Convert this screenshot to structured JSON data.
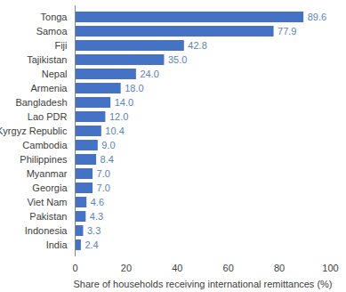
{
  "chart_data": {
    "type": "bar",
    "orientation": "horizontal",
    "categories": [
      "Tonga",
      "Samoa",
      "Fiji",
      "Tajikistan",
      "Nepal",
      "Armenia",
      "Bangladesh",
      "Lao PDR",
      "Kyrgyz Republic",
      "Cambodia",
      "Philippines",
      "Myanmar",
      "Georgia",
      "Viet Nam",
      "Pakistan",
      "Indonesia",
      "India"
    ],
    "values": [
      89.6,
      77.9,
      42.8,
      35.0,
      24.0,
      18.0,
      14.0,
      12.0,
      10.4,
      9.0,
      8.4,
      7.0,
      7.0,
      4.6,
      4.3,
      3.3,
      2.4
    ],
    "value_labels": [
      "89.6",
      "77.9",
      "42.8",
      "35.0",
      "24.0",
      "18.0",
      "14.0",
      "12.0",
      "10.4",
      "9.0",
      "8.4",
      "7.0",
      "7.0",
      "4.6",
      "4.3",
      "3.3",
      "2.4"
    ],
    "data_labels": true,
    "color": "#4472c4",
    "x_label": "Share of households receiving international remittances (%)",
    "xlim": [
      0,
      100
    ],
    "xticks": [
      0,
      20,
      40,
      60,
      80,
      100
    ],
    "grid": false
  }
}
